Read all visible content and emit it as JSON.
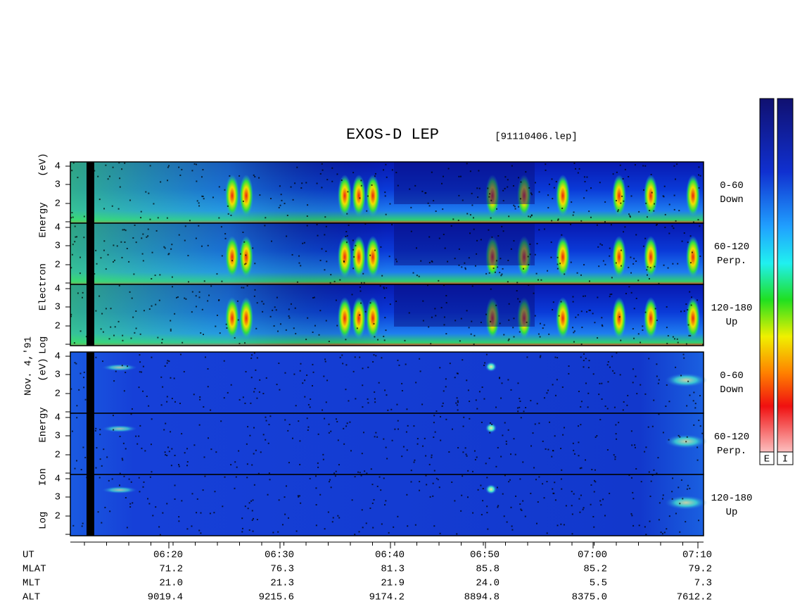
{
  "header": {
    "title": "EXOS-D LEP",
    "file": "[91110406.lep]"
  },
  "date": "Nov. 4,'91",
  "electron_panel": {
    "ylabel": "Log Electron Energy (eV)",
    "channels": [
      {
        "angle": "0-60",
        "direction": "Down"
      },
      {
        "angle": "60-120",
        "direction": "Perp."
      },
      {
        "angle": "120-180",
        "direction": "Up"
      }
    ]
  },
  "ion_panel": {
    "ylabel": "Log Ion Energy (eV)",
    "channels": [
      {
        "angle": "0-60",
        "direction": "Down"
      },
      {
        "angle": "60-120",
        "direction": "Perp."
      },
      {
        "angle": "120-180",
        "direction": "Up"
      }
    ]
  },
  "energy_ticks": [
    "4",
    "3",
    "2"
  ],
  "colorbar_labels": [
    "E",
    "I"
  ],
  "orbit_table": {
    "rows": [
      {
        "label": "UT",
        "values": [
          "06:20",
          "06:30",
          "06:40",
          "06:50",
          "07:00",
          "07:10"
        ]
      },
      {
        "label": "MLAT",
        "values": [
          "71.2",
          "76.3",
          "81.3",
          "85.8",
          "85.2",
          "79.2"
        ]
      },
      {
        "label": "MLT",
        "values": [
          "21.0",
          "21.3",
          "21.9",
          "24.0",
          "5.5",
          "7.3"
        ]
      },
      {
        "label": "ALT",
        "values": [
          "9019.4",
          "9215.6",
          "9174.2",
          "8894.8",
          "8375.0",
          "7612.2"
        ]
      }
    ]
  }
}
